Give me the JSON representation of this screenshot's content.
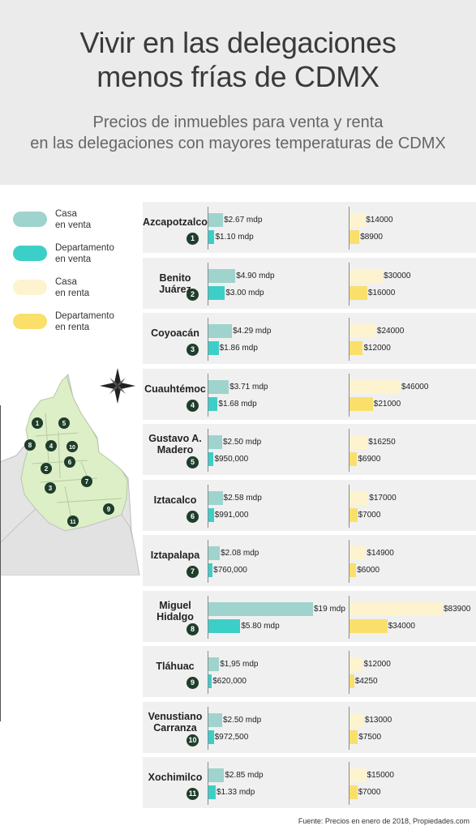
{
  "header": {
    "title_line1": "Vivir en las delegaciones",
    "title_line2": "menos frías de CDMX",
    "subtitle_line1": "Precios de inmuebles para venta y renta",
    "subtitle_line2": "en las delegaciones con mayores temperaturas de CDMX"
  },
  "legend": [
    {
      "line1": "Casa",
      "line2": "en venta",
      "color": "#9fd3cd"
    },
    {
      "line1": "Departamento",
      "line2": "en venta",
      "color": "#3ccfc8"
    },
    {
      "line1": "Casa",
      "line2": "en renta",
      "color": "#fdf3cf"
    },
    {
      "line1": "Departamento",
      "line2": "en renta",
      "color": "#fadf6a"
    }
  ],
  "source": "Fuente: Precios en enero de 2018, Propiedades.com",
  "map_labels": [
    "1",
    "2",
    "3",
    "4",
    "5",
    "6",
    "7",
    "8",
    "9",
    "10",
    "11"
  ],
  "chart_data": {
    "type": "bar",
    "categories": [
      "Azcapotzalco",
      "Benito Juárez",
      "Coyoacán",
      "Cuauhtémoc",
      "Gustavo A. Madero",
      "Iztacalco",
      "Iztapalapa",
      "Miguel Hidalgo",
      "Tláhuac",
      "Venustiano Carranza",
      "Xochimilco"
    ],
    "rows": [
      {
        "name": "Azcapotzalco",
        "name_lines": [
          "Azcapotzalco"
        ],
        "num": "1",
        "casa_venta": 2.67,
        "depto_venta": 1.1,
        "casa_venta_label": "$2.67 mdp",
        "depto_venta_label": "$1.10 mdp",
        "casa_renta": 14000,
        "depto_renta": 8900,
        "casa_renta_label": "$14000",
        "depto_renta_label": "$8900"
      },
      {
        "name": "Benito Juárez",
        "name_lines": [
          "Benito Juárez"
        ],
        "num": "2",
        "casa_venta": 4.9,
        "depto_venta": 3.0,
        "casa_venta_label": "$4.90 mdp",
        "depto_venta_label": "$3.00 mdp",
        "casa_renta": 30000,
        "depto_renta": 16000,
        "casa_renta_label": "$30000",
        "depto_renta_label": "$16000"
      },
      {
        "name": "Coyoacán",
        "name_lines": [
          "Coyoacán"
        ],
        "num": "3",
        "casa_venta": 4.29,
        "depto_venta": 1.86,
        "casa_venta_label": "$4.29 mdp",
        "depto_venta_label": "$1.86 mdp",
        "casa_renta": 24000,
        "depto_renta": 12000,
        "casa_renta_label": "$24000",
        "depto_renta_label": "$12000"
      },
      {
        "name": "Cuauhtémoc",
        "name_lines": [
          "Cuauhtémoc"
        ],
        "num": "4",
        "casa_venta": 3.71,
        "depto_venta": 1.68,
        "casa_venta_label": "$3.71 mdp",
        "depto_venta_label": "$1.68 mdp",
        "casa_renta": 46000,
        "depto_renta": 21000,
        "casa_renta_label": "$46000",
        "depto_renta_label": "$21000"
      },
      {
        "name": "Gustavo A. Madero",
        "name_lines": [
          "Gustavo A.",
          "Madero"
        ],
        "num": "5",
        "casa_venta": 2.5,
        "depto_venta": 0.95,
        "casa_venta_label": "$2.50 mdp",
        "depto_venta_label": "$950,000",
        "casa_renta": 16250,
        "depto_renta": 6900,
        "casa_renta_label": "$16250",
        "depto_renta_label": "$6900"
      },
      {
        "name": "Iztacalco",
        "name_lines": [
          "Iztacalco"
        ],
        "num": "6",
        "casa_venta": 2.58,
        "depto_venta": 0.991,
        "casa_venta_label": "$2.58 mdp",
        "depto_venta_label": "$991,000",
        "casa_renta": 17000,
        "depto_renta": 7000,
        "casa_renta_label": "$17000",
        "depto_renta_label": "$7000"
      },
      {
        "name": "Iztapalapa",
        "name_lines": [
          "Iztapalapa"
        ],
        "num": "7",
        "casa_venta": 2.08,
        "depto_venta": 0.76,
        "casa_venta_label": "$2.08 mdp",
        "depto_venta_label": "$760,000",
        "casa_renta": 14900,
        "depto_renta": 6000,
        "casa_renta_label": "$14900",
        "depto_renta_label": "$6000"
      },
      {
        "name": "Miguel Hidalgo",
        "name_lines": [
          "Miguel",
          "Hidalgo"
        ],
        "num": "8",
        "casa_venta": 19,
        "depto_venta": 5.8,
        "casa_venta_label": "$19 mdp",
        "depto_venta_label": "$5.80 mdp",
        "casa_renta": 83900,
        "depto_renta": 34000,
        "casa_renta_label": "$83900",
        "depto_renta_label": "$34000"
      },
      {
        "name": "Tláhuac",
        "name_lines": [
          "Tláhuac"
        ],
        "num": "9",
        "casa_venta": 1.95,
        "depto_venta": 0.62,
        "casa_venta_label": "$1,95 mdp",
        "depto_venta_label": "$620,000",
        "casa_renta": 12000,
        "depto_renta": 4250,
        "casa_renta_label": "$12000",
        "depto_renta_label": "$4250"
      },
      {
        "name": "Venustiano Carranza",
        "name_lines": [
          "Venustiano",
          "Carranza"
        ],
        "num": "10",
        "casa_venta": 2.5,
        "depto_venta": 0.9725,
        "casa_venta_label": "$2.50 mdp",
        "depto_venta_label": "$972,500",
        "casa_renta": 13000,
        "depto_renta": 7500,
        "casa_renta_label": "$13000",
        "depto_renta_label": "$7500"
      },
      {
        "name": "Xochimilco",
        "name_lines": [
          "Xochimilco"
        ],
        "num": "11",
        "casa_venta": 2.85,
        "depto_venta": 1.33,
        "casa_venta_label": "$2.85 mdp",
        "depto_venta_label": "$1.33 mdp",
        "casa_renta": 15000,
        "depto_renta": 7000,
        "casa_renta_label": "$15000",
        "depto_renta_label": "$7000"
      }
    ],
    "venta_max": 19,
    "renta_max": 83900,
    "colors": {
      "casa_venta": "#9fd3cd",
      "depto_venta": "#3ccfc8",
      "casa_renta": "#fdf3cf",
      "depto_renta": "#fadf6a"
    }
  }
}
